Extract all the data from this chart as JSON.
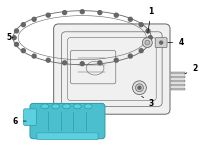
{
  "bg_color": "#ffffff",
  "lc": "#666666",
  "hc": "#4bbfce",
  "hc_dark": "#2a9aaa",
  "hc_mid": "#5dd0df",
  "pan_fill": "#f0f0f0",
  "gasket_label": "5",
  "filter_label": "6",
  "labels": [
    "1",
    "2",
    "3",
    "4",
    "5",
    "6"
  ],
  "figsize": [
    2.0,
    1.47
  ],
  "dpi": 100
}
